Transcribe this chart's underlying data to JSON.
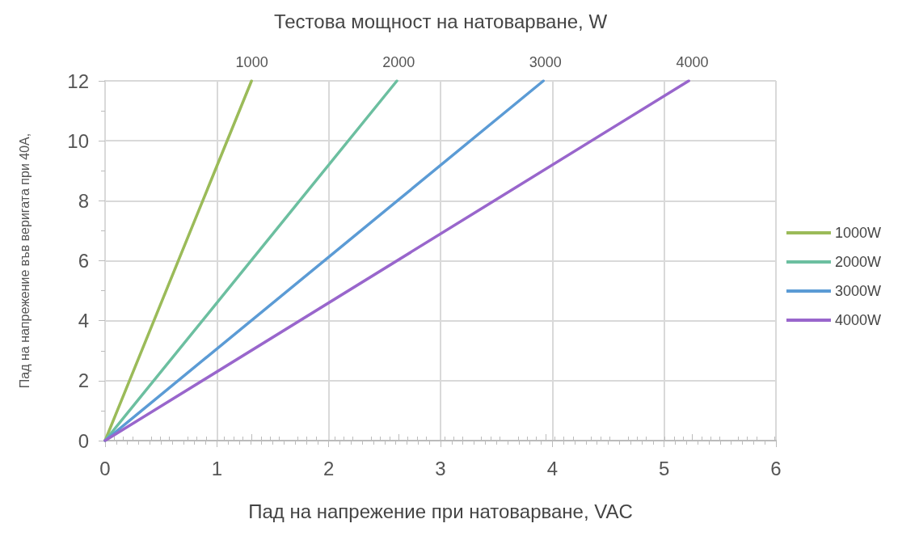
{
  "chart_data": {
    "type": "line",
    "xlabel": "Пад на напрежение при натоварване, VAC",
    "ylabel": "Пад на напрежение във веригата при 40А,",
    "x2label": "Тестова мощност на натоварване, W",
    "xlim": [
      0,
      6
    ],
    "xticks": [
      0,
      1,
      2,
      3,
      4,
      5,
      6
    ],
    "ylim": [
      0,
      12
    ],
    "yticks": [
      0,
      2,
      4,
      6,
      8,
      10,
      12
    ],
    "x2lim": [
      0,
      4570
    ],
    "x2ticks": [
      1000,
      2000,
      3000,
      4000
    ],
    "series": [
      {
        "name": "1000W",
        "color": "#9bbb59",
        "x": [
          0,
          1.31
        ],
        "values": [
          0,
          12
        ]
      },
      {
        "name": "2000W",
        "color": "#6cbfa0",
        "x": [
          0,
          2.61
        ],
        "values": [
          0,
          12
        ]
      },
      {
        "name": "3000W",
        "color": "#5b9bd5",
        "x": [
          0,
          3.92
        ],
        "values": [
          0,
          12
        ]
      },
      {
        "name": "4000W",
        "color": "#9966cc",
        "x": [
          0,
          5.22
        ],
        "values": [
          0,
          12
        ]
      }
    ],
    "grid": true,
    "legend": "right",
    "marker": "none",
    "line_style": "solid"
  }
}
